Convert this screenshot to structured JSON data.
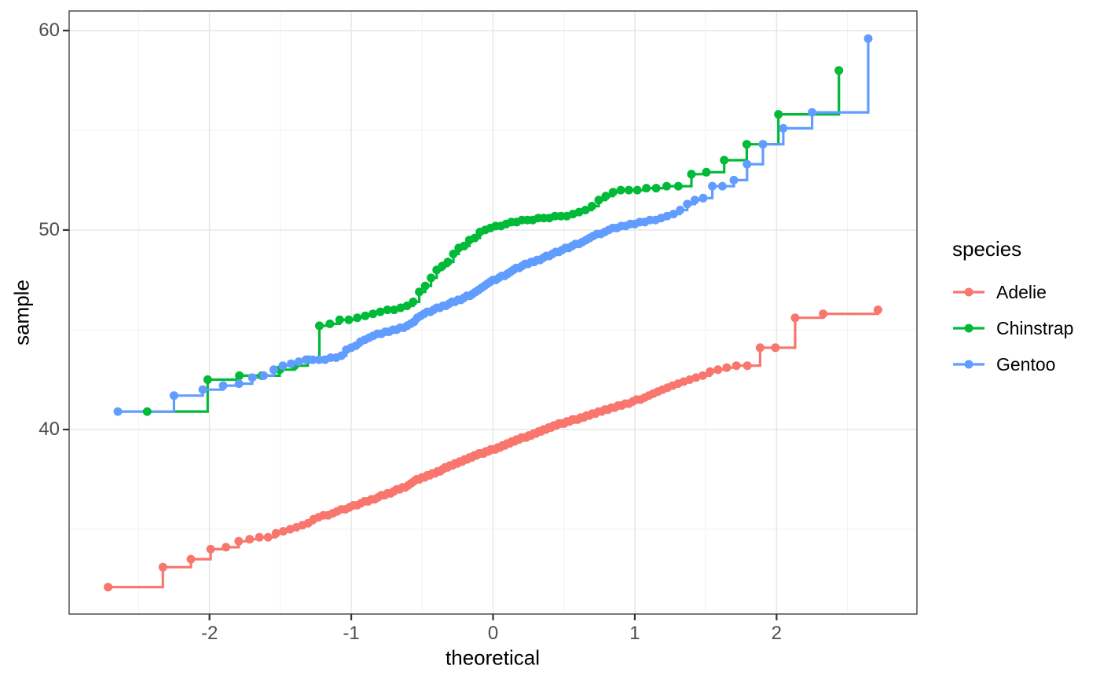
{
  "chart_data": {
    "type": "scatter",
    "subtype": "qq-plot-with-step-lines",
    "title": "",
    "xlabel": "theoretical",
    "ylabel": "sample",
    "legend_title": "species",
    "legend_position": "right",
    "grid": true,
    "x_domain": [
      -2.99,
      2.99
    ],
    "y_domain": [
      30.75,
      60.98
    ],
    "x_ticks_major": [
      -2,
      -1,
      0,
      1,
      2
    ],
    "x_tick_labels": [
      "-2",
      "-1",
      "0",
      "1",
      "2"
    ],
    "x_ticks_minor": [
      -2.5,
      -1.5,
      -0.5,
      0.5,
      1.5,
      2.5
    ],
    "y_ticks_major": [
      40,
      50,
      60
    ],
    "y_tick_labels": [
      "40",
      "50",
      "60"
    ],
    "y_ticks_minor": [
      35,
      45,
      55
    ],
    "quantile_method": "qnorm((i-0.5)/n)",
    "point_radius": 5.5,
    "line_width": 3.2,
    "colors": {
      "panel_border": "#333333",
      "tick": "#333333",
      "tick_label": "#4d4d4d",
      "grid_major": "#e7e7e7",
      "grid_minor": "#f1f1f1",
      "text": "#000000",
      "background": "#ffffff"
    },
    "series": [
      {
        "name": "Adelie",
        "color": "#F8766D",
        "n": 151,
        "values": [
          32.1,
          33.1,
          33.5,
          34.0,
          34.1,
          34.4,
          34.5,
          34.6,
          34.6,
          34.8,
          34.9,
          35.0,
          35.1,
          35.2,
          35.3,
          35.5,
          35.6,
          35.7,
          35.7,
          35.8,
          35.9,
          36.0,
          36.0,
          36.1,
          36.2,
          36.2,
          36.3,
          36.4,
          36.4,
          36.5,
          36.5,
          36.6,
          36.7,
          36.7,
          36.8,
          36.8,
          36.9,
          37.0,
          37.0,
          37.1,
          37.1,
          37.2,
          37.3,
          37.4,
          37.5,
          37.5,
          37.6,
          37.6,
          37.7,
          37.7,
          37.8,
          37.8,
          37.9,
          37.9,
          38.0,
          38.1,
          38.1,
          38.2,
          38.2,
          38.3,
          38.3,
          38.4,
          38.4,
          38.5,
          38.5,
          38.6,
          38.6,
          38.7,
          38.7,
          38.8,
          38.8,
          38.8,
          38.9,
          38.9,
          39.0,
          39.0,
          39.0,
          39.1,
          39.1,
          39.2,
          39.2,
          39.3,
          39.3,
          39.4,
          39.4,
          39.5,
          39.5,
          39.6,
          39.6,
          39.6,
          39.7,
          39.7,
          39.8,
          39.8,
          39.9,
          39.9,
          40.0,
          40.0,
          40.1,
          40.1,
          40.2,
          40.2,
          40.3,
          40.3,
          40.3,
          40.4,
          40.4,
          40.5,
          40.5,
          40.5,
          40.6,
          40.6,
          40.7,
          40.7,
          40.8,
          40.8,
          40.9,
          40.9,
          41.0,
          41.0,
          41.1,
          41.1,
          41.2,
          41.2,
          41.3,
          41.3,
          41.4,
          41.5,
          41.5,
          41.6,
          41.7,
          41.8,
          41.9,
          42.0,
          42.1,
          42.2,
          42.3,
          42.4,
          42.5,
          42.6,
          42.7,
          42.9,
          43.0,
          43.1,
          43.2,
          43.2,
          44.1,
          44.1,
          45.6,
          45.8,
          46.0
        ]
      },
      {
        "name": "Chinstrap",
        "color": "#00BA38",
        "n": 68,
        "values": [
          40.9,
          42.5,
          42.7,
          42.7,
          43.0,
          43.2,
          43.5,
          45.2,
          45.3,
          45.5,
          45.5,
          45.6,
          45.7,
          45.8,
          45.9,
          46.0,
          46.0,
          46.1,
          46.2,
          46.4,
          46.9,
          47.2,
          47.6,
          48.0,
          48.2,
          48.4,
          48.8,
          49.1,
          49.2,
          49.5,
          49.6,
          49.9,
          50.0,
          50.1,
          50.2,
          50.2,
          50.3,
          50.4,
          50.4,
          50.5,
          50.5,
          50.5,
          50.6,
          50.6,
          50.6,
          50.7,
          50.7,
          50.7,
          50.8,
          50.9,
          51.0,
          51.2,
          51.5,
          51.7,
          51.9,
          52.0,
          52.0,
          52.0,
          52.1,
          52.1,
          52.2,
          52.2,
          52.8,
          52.9,
          53.5,
          54.3,
          55.8,
          58.0
        ]
      },
      {
        "name": "Gentoo",
        "color": "#619CFF",
        "n": 123,
        "values": [
          40.9,
          41.7,
          42.0,
          42.2,
          42.3,
          42.6,
          42.7,
          43.0,
          43.2,
          43.3,
          43.4,
          43.5,
          43.5,
          43.5,
          43.5,
          43.6,
          43.6,
          43.7,
          44.0,
          44.1,
          44.2,
          44.4,
          44.5,
          44.6,
          44.7,
          44.8,
          44.8,
          44.9,
          44.9,
          45.0,
          45.0,
          45.1,
          45.1,
          45.2,
          45.3,
          45.4,
          45.6,
          45.7,
          45.8,
          45.9,
          45.9,
          46.0,
          46.1,
          46.1,
          46.2,
          46.2,
          46.3,
          46.4,
          46.4,
          46.5,
          46.5,
          46.6,
          46.7,
          46.7,
          46.8,
          46.9,
          47.0,
          47.1,
          47.2,
          47.3,
          47.4,
          47.5,
          47.5,
          47.6,
          47.7,
          47.7,
          47.8,
          47.9,
          48.0,
          48.1,
          48.1,
          48.2,
          48.3,
          48.3,
          48.4,
          48.4,
          48.5,
          48.5,
          48.6,
          48.7,
          48.7,
          48.8,
          48.9,
          48.9,
          49.0,
          49.1,
          49.1,
          49.2,
          49.3,
          49.3,
          49.4,
          49.5,
          49.6,
          49.7,
          49.8,
          49.8,
          49.9,
          50.0,
          50.1,
          50.1,
          50.2,
          50.2,
          50.3,
          50.3,
          50.4,
          50.4,
          50.5,
          50.5,
          50.6,
          50.7,
          50.8,
          51.0,
          51.3,
          51.5,
          51.6,
          52.2,
          52.2,
          52.5,
          53.3,
          54.3,
          55.1,
          55.9,
          59.6
        ]
      }
    ]
  }
}
